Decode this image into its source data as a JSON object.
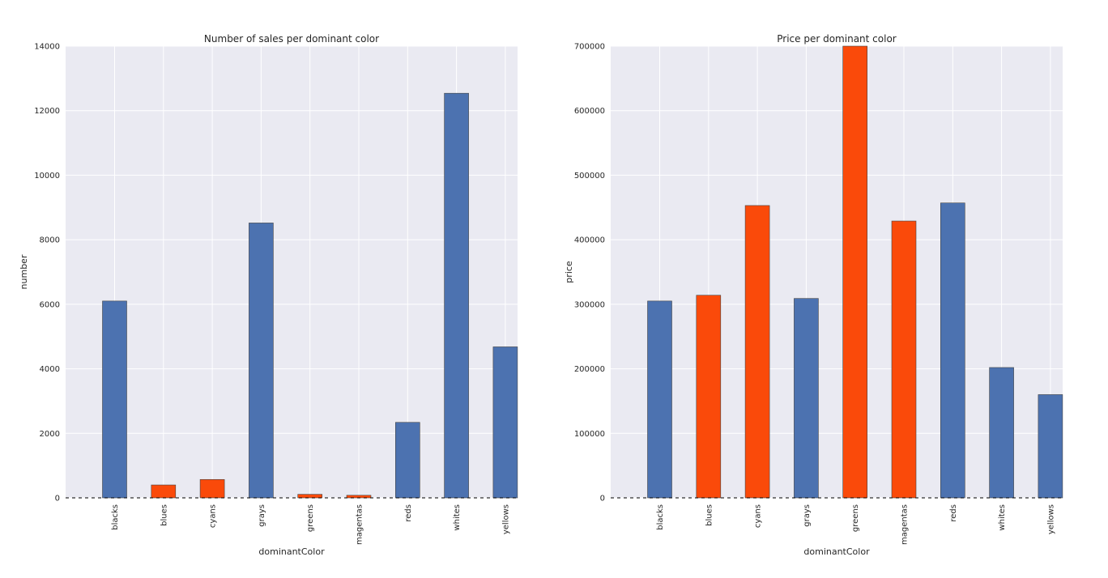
{
  "colors": {
    "default_bar": "#4c72b0",
    "highlight_bar": "#fa4a0a"
  },
  "chart_data": [
    {
      "type": "bar",
      "title": "Number of sales per dominant color",
      "xlabel": "dominantColor",
      "ylabel": "number",
      "categories": [
        "blacks",
        "blues",
        "cyans",
        "grays",
        "greens",
        "magentas",
        "reds",
        "whites",
        "yellows"
      ],
      "values": [
        6100,
        400,
        570,
        8520,
        110,
        80,
        2340,
        12540,
        4680
      ],
      "highlighted": [
        false,
        true,
        true,
        false,
        true,
        true,
        false,
        false,
        false
      ],
      "ylim": [
        0,
        14000
      ],
      "yticks": [
        0,
        2000,
        4000,
        6000,
        8000,
        10000,
        12000,
        14000
      ]
    },
    {
      "type": "bar",
      "title": "Price per dominant color",
      "xlabel": "dominantColor",
      "ylabel": "price",
      "categories": [
        "blacks",
        "blues",
        "cyans",
        "grays",
        "greens",
        "magentas",
        "reds",
        "whites",
        "yellows"
      ],
      "values": [
        305000,
        314000,
        453000,
        309000,
        700000,
        429000,
        457000,
        202000,
        160000
      ],
      "highlighted": [
        false,
        true,
        true,
        false,
        true,
        true,
        false,
        false,
        false
      ],
      "ylim": [
        0,
        700000
      ],
      "yticks": [
        0,
        100000,
        200000,
        300000,
        400000,
        500000,
        600000,
        700000
      ]
    }
  ]
}
